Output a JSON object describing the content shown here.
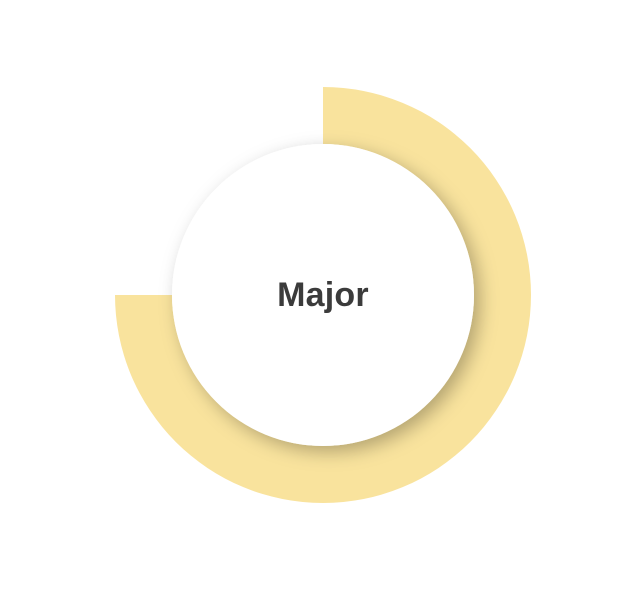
{
  "gauge": {
    "label": "Major",
    "progress_fraction": 0.75,
    "arc_color": "#f9e39d",
    "center_color": "#ffffff",
    "label_color": "#3b3b3b"
  }
}
